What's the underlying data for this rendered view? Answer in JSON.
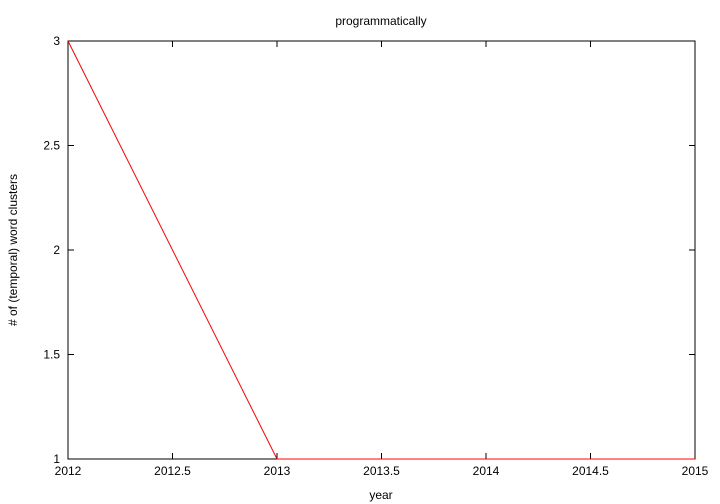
{
  "chart_data": {
    "type": "line",
    "title": "programmatically",
    "xlabel": "year",
    "ylabel": "# of (temporal) word clusters",
    "xlim": [
      2012,
      2015
    ],
    "ylim": [
      1,
      3
    ],
    "xticks": [
      "2012",
      "2012.5",
      "2013",
      "2013.5",
      "2014",
      "2014.5",
      "2015"
    ],
    "yticks": [
      "1",
      "1.5",
      "2",
      "2.5",
      "3"
    ],
    "series": [
      {
        "x": [
          2012,
          2013,
          2014,
          2015
        ],
        "y": [
          3,
          1,
          1,
          1
        ],
        "color": "#ff0000"
      }
    ],
    "grid": false,
    "legend": "none"
  }
}
